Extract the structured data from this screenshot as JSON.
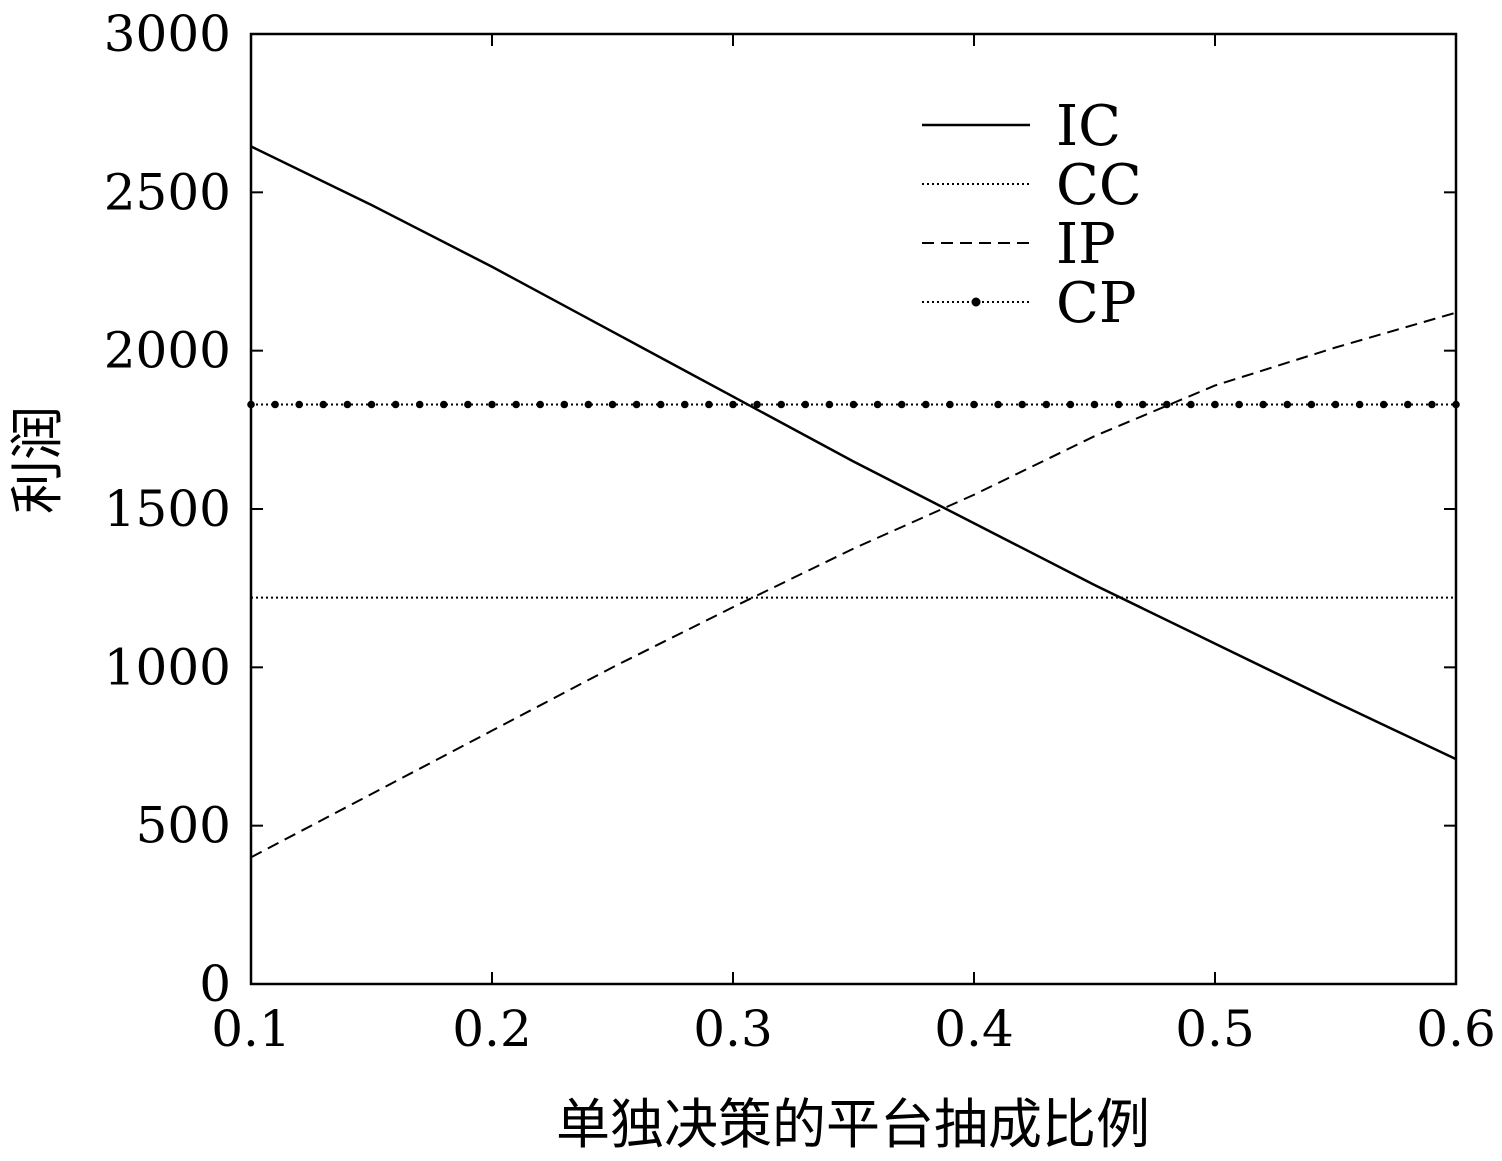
{
  "chart_data": {
    "type": "line",
    "title": "",
    "xlabel": "单独决策的平台抽成比例",
    "ylabel": "利润",
    "xlim": [
      0.1,
      0.6
    ],
    "ylim": [
      0,
      3000
    ],
    "xticks": [
      0.1,
      0.2,
      0.3,
      0.4,
      0.5,
      0.6
    ],
    "xtick_labels": [
      "0.1",
      "0.2",
      "0.3",
      "0.4",
      "0.5",
      "0.6"
    ],
    "yticks": [
      0,
      500,
      1000,
      1500,
      2000,
      2500,
      3000
    ],
    "ytick_labels": [
      "0",
      "500",
      "1000",
      "1500",
      "2000",
      "2500",
      "3000"
    ],
    "grid": false,
    "legend_position": "top-right",
    "series": [
      {
        "name": "IC",
        "style": "solid",
        "x": [
          0.1,
          0.15,
          0.2,
          0.25,
          0.3,
          0.35,
          0.4,
          0.45,
          0.5,
          0.55,
          0.6
        ],
        "y": [
          2645,
          2460,
          2265,
          2060,
          1855,
          1650,
          1455,
          1260,
          1075,
          890,
          710
        ]
      },
      {
        "name": "CC",
        "style": "dotted",
        "x": [
          0.1,
          0.6
        ],
        "y": [
          1220,
          1220
        ]
      },
      {
        "name": "IP",
        "style": "dashed",
        "x": [
          0.1,
          0.15,
          0.2,
          0.25,
          0.3,
          0.35,
          0.4,
          0.45,
          0.5,
          0.55,
          0.6
        ],
        "y": [
          400,
          600,
          800,
          1000,
          1190,
          1375,
          1545,
          1730,
          1890,
          2010,
          2120
        ]
      },
      {
        "name": "CP",
        "style": "dash-dot-marker",
        "x": [
          0.1,
          0.6
        ],
        "y": [
          1830,
          1830
        ]
      }
    ]
  }
}
